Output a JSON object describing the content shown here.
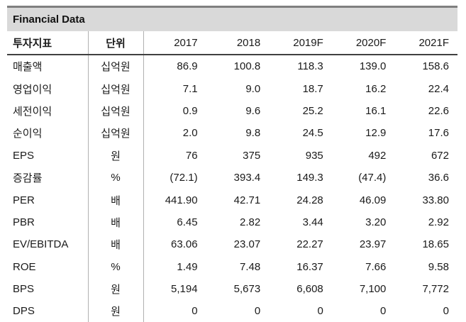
{
  "table": {
    "title": "Financial Data",
    "columns": [
      "투자지표",
      "단위",
      "2017",
      "2018",
      "2019F",
      "2020F",
      "2021F"
    ],
    "rows": [
      {
        "label": "매출액",
        "unit": "십억원",
        "values": [
          "86.9",
          "100.8",
          "118.3",
          "139.0",
          "158.6"
        ]
      },
      {
        "label": "영업이익",
        "unit": "십억원",
        "values": [
          "7.1",
          "9.0",
          "18.7",
          "16.2",
          "22.4"
        ]
      },
      {
        "label": "세전이익",
        "unit": "십억원",
        "values": [
          "0.9",
          "9.6",
          "25.2",
          "16.1",
          "22.6"
        ]
      },
      {
        "label": "순이익",
        "unit": "십억원",
        "values": [
          "2.0",
          "9.8",
          "24.5",
          "12.9",
          "17.6"
        ]
      },
      {
        "label": "EPS",
        "unit": "원",
        "values": [
          "76",
          "375",
          "935",
          "492",
          "672"
        ]
      },
      {
        "label": "증감률",
        "unit": "%",
        "values": [
          "(72.1)",
          "393.4",
          "149.3",
          "(47.4)",
          "36.6"
        ]
      },
      {
        "label": "PER",
        "unit": "배",
        "values": [
          "441.90",
          "42.71",
          "24.28",
          "46.09",
          "33.80"
        ]
      },
      {
        "label": "PBR",
        "unit": "배",
        "values": [
          "6.45",
          "2.82",
          "3.44",
          "3.20",
          "2.92"
        ]
      },
      {
        "label": "EV/EBITDA",
        "unit": "배",
        "values": [
          "63.06",
          "23.07",
          "22.27",
          "23.97",
          "18.65"
        ]
      },
      {
        "label": "ROE",
        "unit": "%",
        "values": [
          "1.49",
          "7.48",
          "16.37",
          "7.66",
          "9.58"
        ]
      },
      {
        "label": "BPS",
        "unit": "원",
        "values": [
          "5,194",
          "5,673",
          "6,608",
          "7,100",
          "7,772"
        ]
      },
      {
        "label": "DPS",
        "unit": "원",
        "values": [
          "0",
          "0",
          "0",
          "0",
          "0"
        ]
      }
    ],
    "colors": {
      "title_background": "#d9d9d9",
      "top_border": "#7f7f7f",
      "header_rule": "#404040",
      "bottom_rule": "#404040",
      "column_divider": "#b0b0b0",
      "text": "#1a1a1a"
    }
  }
}
